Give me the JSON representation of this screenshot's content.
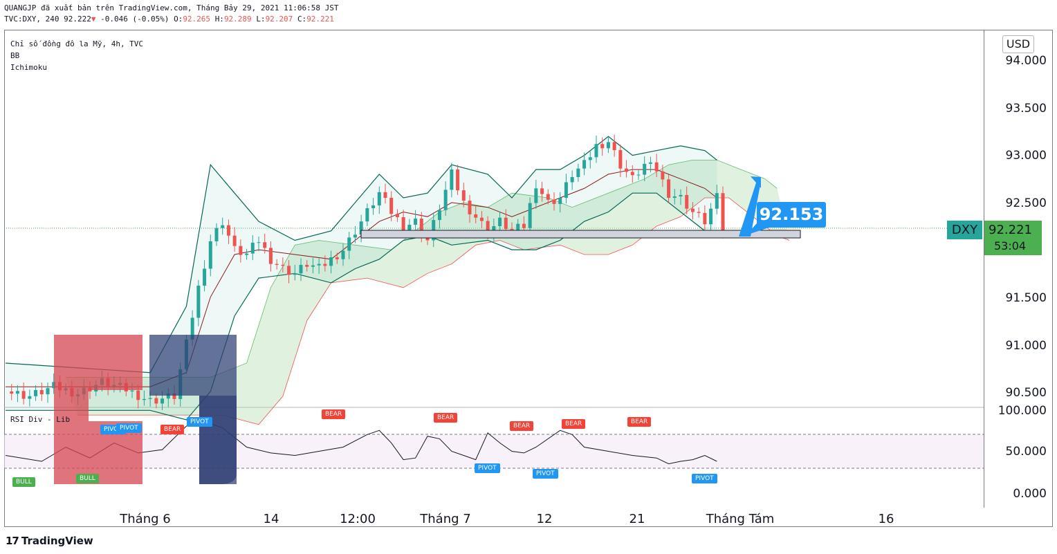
{
  "header": {
    "publisher_line": "QUANGJP đã xuất bản trên TradingView.com, Tháng Bảy 29, 2021 11:06:58 JST",
    "symbol_prefix": "TVC:DXY, 240 92.222",
    "change_arrow": "▼",
    "change": "-0.046 (-0.05%)",
    "ohlc": [
      {
        "label": "O:",
        "value": "92.265"
      },
      {
        "label": "H:",
        "value": "92.289"
      },
      {
        "label": "L:",
        "value": "92.207"
      },
      {
        "label": "C:",
        "value": "92.221"
      }
    ]
  },
  "legend": {
    "title": "Chỉ số đồng đô la Mỹ, 4h, TVC",
    "indicators": [
      "BB",
      "Ichimoku"
    ]
  },
  "rsi_panel": {
    "title": "RSI Div - Lib",
    "ticks": [
      "100.000",
      "50.000",
      "0.000"
    ],
    "badges": [
      {
        "kind": "bull",
        "text": "BULL"
      },
      {
        "kind": "bull",
        "text": "BULL"
      },
      {
        "kind": "pivot",
        "text": "PIVOT"
      },
      {
        "kind": "pivot",
        "text": "PIVOT"
      },
      {
        "kind": "bear",
        "text": "BEAR"
      },
      {
        "kind": "pivot",
        "text": "PIVOT"
      },
      {
        "kind": "bear",
        "text": "BEAR"
      },
      {
        "kind": "bear",
        "text": "BEAR"
      },
      {
        "kind": "pivot",
        "text": "PIVOT"
      },
      {
        "kind": "bear",
        "text": "BEAR"
      },
      {
        "kind": "pivot",
        "text": "PIVOT"
      },
      {
        "kind": "bear",
        "text": "BEAR"
      },
      {
        "kind": "bear",
        "text": "BEAR"
      },
      {
        "kind": "pivot",
        "text": "PIVOT"
      }
    ]
  },
  "price_axis": {
    "currency": "USD",
    "ticks": [
      "94.000",
      "93.500",
      "93.000",
      "92.500",
      "92.221",
      "91.500",
      "91.000",
      "90.500"
    ],
    "symbol_tag": "DXY",
    "last_price": "92.221",
    "countdown": "53:04"
  },
  "callout": "92.153",
  "time_axis": [
    "Tháng 6",
    "14",
    "12:00",
    "Tháng 7",
    "12",
    "21",
    "Tháng Tám",
    "16"
  ],
  "brand": {
    "logo": "17",
    "name": "TradingView"
  },
  "colors": {
    "up": "#26a69a",
    "down": "#ef5350",
    "bb_band": "#056656",
    "bb_basis": "#8b1a1a",
    "cloud_bull": "#a5d6a7",
    "cloud_bear": "#ef9a9a",
    "callout": "#2196f3",
    "last_price_bg": "#4caf50"
  },
  "chart_data": {
    "type": "candlestick",
    "symbol": "TVC:DXY",
    "interval": "240",
    "ylim": [
      90.3,
      94.2
    ],
    "y_ticks": [
      94.0,
      93.5,
      93.0,
      92.5,
      92.0,
      91.5,
      91.0,
      90.5
    ],
    "last": 92.221,
    "support_zone": [
      92.12,
      92.2
    ],
    "target": 92.153,
    "price_path": [
      [
        0,
        90.5
      ],
      [
        4,
        90.45
      ],
      [
        8,
        90.55
      ],
      [
        12,
        90.48
      ],
      [
        16,
        90.6
      ],
      [
        20,
        90.52
      ],
      [
        24,
        90.4
      ],
      [
        28,
        90.45
      ],
      [
        30,
        91.0
      ],
      [
        32,
        91.6
      ],
      [
        34,
        92.1
      ],
      [
        36,
        92.3
      ],
      [
        38,
        92.0
      ],
      [
        40,
        91.95
      ],
      [
        42,
        92.1
      ],
      [
        44,
        91.9
      ],
      [
        46,
        91.8
      ],
      [
        48,
        91.75
      ],
      [
        50,
        91.85
      ],
      [
        52,
        91.8
      ],
      [
        54,
        91.9
      ],
      [
        56,
        92.0
      ],
      [
        58,
        92.2
      ],
      [
        60,
        92.4
      ],
      [
        62,
        92.6
      ],
      [
        64,
        92.4
      ],
      [
        66,
        92.25
      ],
      [
        68,
        92.3
      ],
      [
        70,
        92.1
      ],
      [
        72,
        92.45
      ],
      [
        74,
        92.8
      ],
      [
        76,
        92.5
      ],
      [
        78,
        92.35
      ],
      [
        80,
        92.2
      ],
      [
        82,
        92.3
      ],
      [
        84,
        92.2
      ],
      [
        86,
        92.25
      ],
      [
        88,
        92.7
      ],
      [
        90,
        92.5
      ],
      [
        92,
        92.55
      ],
      [
        94,
        92.8
      ],
      [
        96,
        92.9
      ],
      [
        98,
        93.1
      ],
      [
        100,
        93.15
      ],
      [
        102,
        92.9
      ],
      [
        104,
        92.75
      ],
      [
        106,
        92.9
      ],
      [
        108,
        92.85
      ],
      [
        110,
        92.6
      ],
      [
        112,
        92.55
      ],
      [
        114,
        92.4
      ],
      [
        116,
        92.3
      ],
      [
        118,
        92.55
      ],
      [
        119,
        92.22
      ]
    ],
    "bb_upper": [
      [
        0,
        90.8
      ],
      [
        24,
        90.7
      ],
      [
        30,
        91.4
      ],
      [
        34,
        92.9
      ],
      [
        38,
        92.6
      ],
      [
        42,
        92.3
      ],
      [
        48,
        92.1
      ],
      [
        54,
        92.2
      ],
      [
        58,
        92.5
      ],
      [
        62,
        92.8
      ],
      [
        66,
        92.55
      ],
      [
        70,
        92.6
      ],
      [
        74,
        92.9
      ],
      [
        80,
        92.8
      ],
      [
        84,
        92.55
      ],
      [
        88,
        92.85
      ],
      [
        92,
        92.85
      ],
      [
        96,
        93.0
      ],
      [
        100,
        93.2
      ],
      [
        104,
        93.0
      ],
      [
        108,
        93.05
      ],
      [
        112,
        93.1
      ],
      [
        116,
        93.05
      ],
      [
        118,
        92.95
      ]
    ],
    "bb_basis": [
      [
        0,
        90.55
      ],
      [
        24,
        90.55
      ],
      [
        30,
        90.7
      ],
      [
        34,
        91.5
      ],
      [
        38,
        91.95
      ],
      [
        42,
        92.0
      ],
      [
        48,
        91.95
      ],
      [
        54,
        91.9
      ],
      [
        58,
        92.1
      ],
      [
        62,
        92.3
      ],
      [
        66,
        92.4
      ],
      [
        70,
        92.35
      ],
      [
        74,
        92.5
      ],
      [
        80,
        92.45
      ],
      [
        84,
        92.35
      ],
      [
        88,
        92.45
      ],
      [
        92,
        92.55
      ],
      [
        96,
        92.65
      ],
      [
        100,
        92.8
      ],
      [
        104,
        92.85
      ],
      [
        108,
        92.85
      ],
      [
        112,
        92.75
      ],
      [
        116,
        92.65
      ],
      [
        118,
        92.55
      ]
    ],
    "bb_lower": [
      [
        0,
        90.3
      ],
      [
        24,
        90.3
      ],
      [
        30,
        90.2
      ],
      [
        34,
        90.5
      ],
      [
        38,
        91.3
      ],
      [
        42,
        91.7
      ],
      [
        48,
        91.75
      ],
      [
        54,
        91.65
      ],
      [
        58,
        91.8
      ],
      [
        62,
        91.9
      ],
      [
        66,
        92.1
      ],
      [
        70,
        92.15
      ],
      [
        74,
        92.05
      ],
      [
        80,
        92.1
      ],
      [
        84,
        92.0
      ],
      [
        88,
        92.0
      ],
      [
        92,
        92.1
      ],
      [
        96,
        92.3
      ],
      [
        100,
        92.4
      ],
      [
        104,
        92.6
      ],
      [
        108,
        92.6
      ],
      [
        112,
        92.4
      ],
      [
        116,
        92.2
      ],
      [
        118,
        92.15
      ]
    ],
    "rsi": [
      [
        0,
        45
      ],
      [
        6,
        38
      ],
      [
        10,
        55
      ],
      [
        14,
        42
      ],
      [
        18,
        60
      ],
      [
        22,
        48
      ],
      [
        26,
        52
      ],
      [
        30,
        80
      ],
      [
        32,
        88
      ],
      [
        36,
        78
      ],
      [
        40,
        55
      ],
      [
        44,
        48
      ],
      [
        48,
        45
      ],
      [
        52,
        50
      ],
      [
        56,
        55
      ],
      [
        60,
        70
      ],
      [
        62,
        75
      ],
      [
        64,
        60
      ],
      [
        66,
        40
      ],
      [
        68,
        42
      ],
      [
        70,
        68
      ],
      [
        72,
        65
      ],
      [
        74,
        50
      ],
      [
        76,
        45
      ],
      [
        78,
        40
      ],
      [
        80,
        72
      ],
      [
        82,
        60
      ],
      [
        84,
        50
      ],
      [
        86,
        48
      ],
      [
        88,
        55
      ],
      [
        90,
        65
      ],
      [
        92,
        75
      ],
      [
        94,
        70
      ],
      [
        96,
        55
      ],
      [
        100,
        50
      ],
      [
        104,
        45
      ],
      [
        108,
        42
      ],
      [
        110,
        35
      ],
      [
        112,
        38
      ],
      [
        114,
        40
      ],
      [
        116,
        45
      ],
      [
        118,
        38
      ]
    ]
  }
}
